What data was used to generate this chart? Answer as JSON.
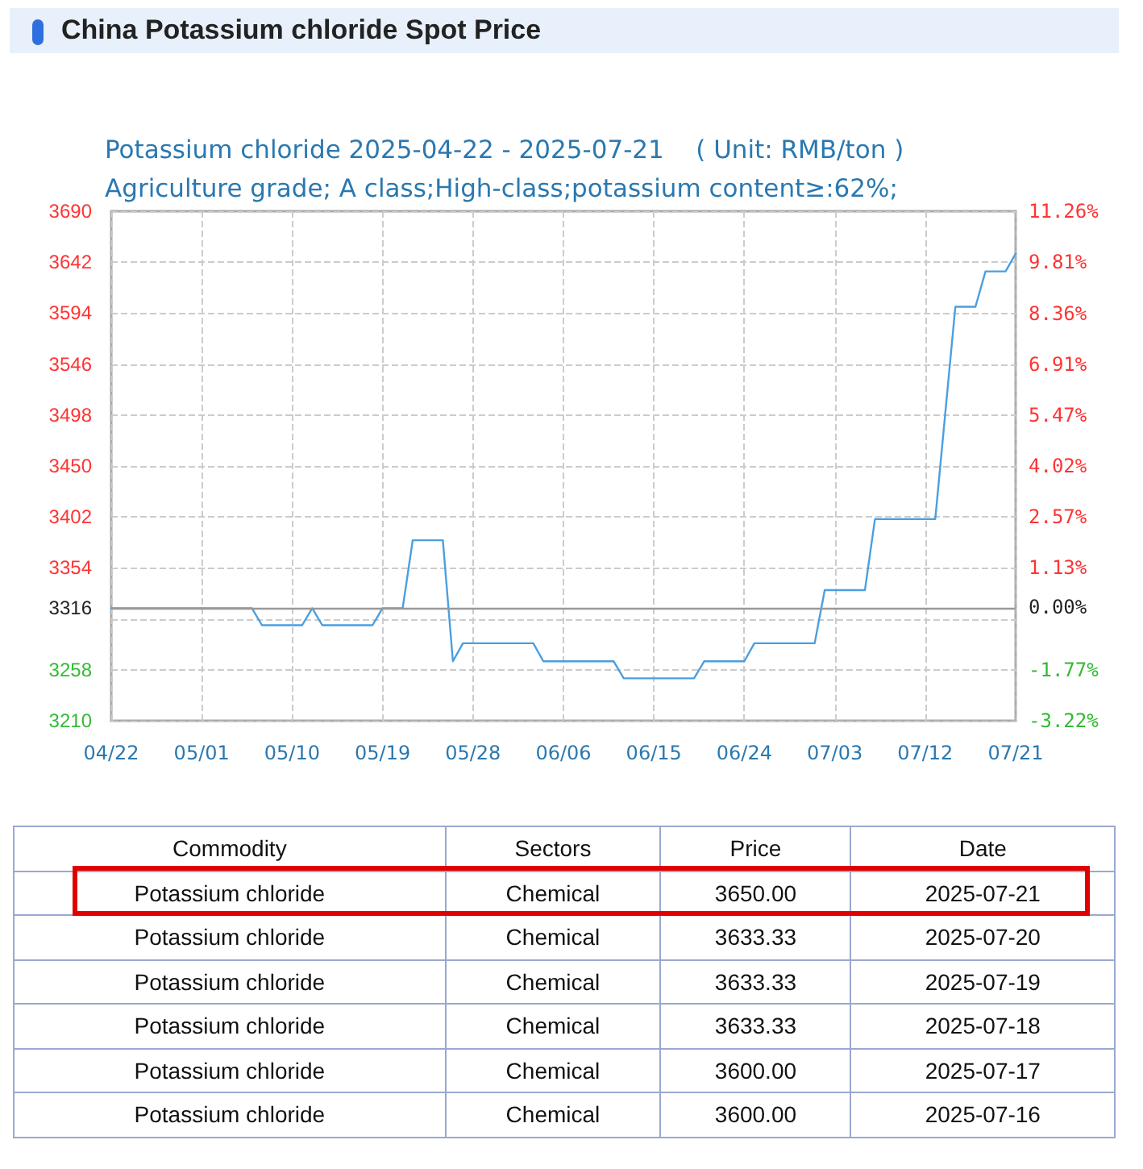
{
  "chart_data": [
    {
      "type": "line",
      "title": "China Potassium chloride Spot Price",
      "subtitle": "Potassium chloride 2025-04-22 - 2025-07-21    ( Unit: RMB/ton )\nAgriculture grade; A class;High-class;potassium content≥:62%;",
      "x": [
        "2025-04-22",
        "2025-05-06",
        "2025-05-07",
        "2025-05-11",
        "2025-05-12",
        "2025-05-13",
        "2025-05-18",
        "2025-05-19",
        "2025-05-21",
        "2025-05-22",
        "2025-05-25",
        "2025-05-26",
        "2025-05-27",
        "2025-06-03",
        "2025-06-04",
        "2025-06-11",
        "2025-06-12",
        "2025-06-19",
        "2025-06-20",
        "2025-06-24",
        "2025-06-25",
        "2025-07-01",
        "2025-07-02",
        "2025-07-06",
        "2025-07-07",
        "2025-07-13",
        "2025-07-15",
        "2025-07-17",
        "2025-07-18",
        "2025-07-20",
        "2025-07-21"
      ],
      "series": [
        {
          "color": "#4a9fe0",
          "values": [
            3316,
            3316,
            3300,
            3300,
            3316,
            3300,
            3300,
            3316,
            3316,
            3380,
            3380,
            3266,
            3283,
            3283,
            3266,
            3266,
            3250,
            3250,
            3266,
            3266,
            3283,
            3283,
            3333,
            3333,
            3400,
            3400,
            3600,
            3600,
            3633.33,
            3633.33,
            3650
          ]
        }
      ],
      "xlim": [
        "2025-04-22",
        "2025-07-21"
      ],
      "xticks": [
        {
          "value": "2025-04-22",
          "label": "04/22"
        },
        {
          "value": "2025-05-01",
          "label": "05/01"
        },
        {
          "value": "2025-05-10",
          "label": "05/10"
        },
        {
          "value": "2025-05-19",
          "label": "05/19"
        },
        {
          "value": "2025-05-28",
          "label": "05/28"
        },
        {
          "value": "2025-06-06",
          "label": "06/06"
        },
        {
          "value": "2025-06-15",
          "label": "06/15"
        },
        {
          "value": "2025-06-24",
          "label": "06/24"
        },
        {
          "value": "2025-07-03",
          "label": "07/03"
        },
        {
          "value": "2025-07-12",
          "label": "07/12"
        },
        {
          "value": "2025-07-21",
          "label": "07/21"
        }
      ],
      "ylim": [
        3210,
        3690
      ],
      "yticks": [
        3210,
        3258,
        {
          "value": 3306,
          "label": null
        },
        3354,
        3402,
        3450,
        3498,
        3546,
        3594,
        3642,
        3690
      ],
      "y2lim": [
        -3.22,
        11.26
      ],
      "y2ticks": [
        {
          "value": -3.22,
          "label": "-3.22%"
        },
        {
          "value": -1.77,
          "label": "-1.77%"
        },
        {
          "value": 0,
          "label": "0.00%"
        },
        {
          "value": 1.13,
          "label": "1.13%"
        },
        {
          "value": 2.57,
          "label": "2.57%"
        },
        {
          "value": 4.02,
          "label": "4.02%"
        },
        {
          "value": 5.47,
          "label": "5.47%"
        },
        {
          "value": 6.91,
          "label": "6.91%"
        },
        {
          "value": 8.36,
          "label": "8.36%"
        },
        {
          "value": 9.81,
          "label": "9.81%"
        },
        {
          "value": 11.26,
          "label": "11.26%"
        }
      ],
      "ref_lines": [
        {
          "axis": "y",
          "value": 3316,
          "label": "3316",
          "color": "#999999"
        }
      ],
      "grid": true,
      "marker": "none",
      "line_style": "solid"
    },
    {
      "type": "other",
      "categories": [
        "Commodity",
        "Sectors",
        "Price",
        "Date"
      ],
      "annotations": [
        "Potassium chloride",
        "Chemical",
        "3650.00",
        "2025-07-21",
        "Potassium chloride",
        "Chemical",
        "3633.33",
        "2025-07-20",
        "Potassium chloride",
        "Chemical",
        "3633.33",
        "2025-07-19",
        "Potassium chloride",
        "Chemical",
        "3633.33",
        "2025-07-18",
        "Potassium chloride",
        "Chemical",
        "3600.00",
        "2025-07-17",
        "Potassium chloride",
        "Chemical",
        "3600.00",
        "2025-07-16"
      ]
    }
  ]
}
